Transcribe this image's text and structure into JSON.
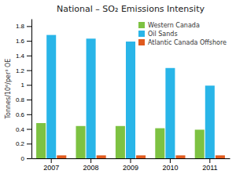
{
  "chart_data": {
    "type": "bar",
    "title": "National – SO₂ Emissions Intensity",
    "ylabel": "Tonnes/10⁶/per³ OE",
    "categories": [
      "2007",
      "2008",
      "2009",
      "2010",
      "2011"
    ],
    "series": [
      {
        "name": "Western Canada",
        "color": "#7dc242",
        "values": [
          0.48,
          0.44,
          0.44,
          0.41,
          0.39
        ]
      },
      {
        "name": "Oil Sands",
        "color": "#29b5e8",
        "values": [
          1.68,
          1.63,
          1.59,
          1.23,
          0.99
        ]
      },
      {
        "name": "Atlantic Canada Offshore",
        "color": "#e05a1e",
        "values": [
          0.04,
          0.04,
          0.04,
          0.04,
          0.04
        ]
      }
    ],
    "ylim": [
      0,
      1.9
    ],
    "yticks": [
      0,
      0.2,
      0.4,
      0.6,
      0.8,
      1,
      1.2,
      1.4,
      1.6,
      1.8
    ],
    "grid": false,
    "legend": "upper right"
  }
}
